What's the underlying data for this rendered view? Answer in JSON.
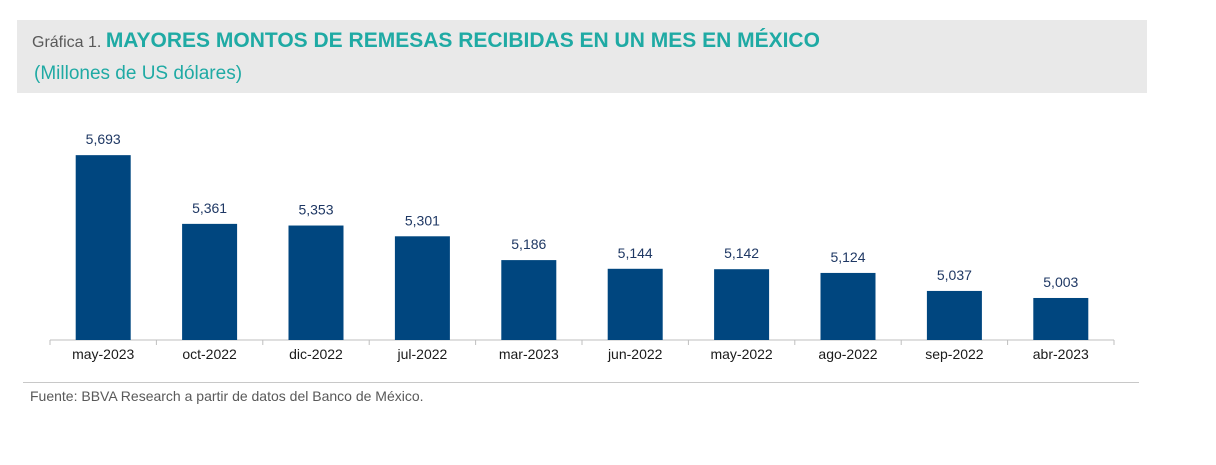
{
  "header": {
    "prefix": "Gráfica 1.",
    "title": "MAYORES MONTOS DE REMESAS RECIBIDAS EN UN MES EN MÉXICO",
    "subtitle": "(Millones de US dólares)"
  },
  "footer": {
    "source": "Fuente: BBVA Research a partir de datos del Banco de México."
  },
  "colors": {
    "bar": "#00467f",
    "title": "#1faaa4",
    "label": "#1f3864",
    "axis": "#bfbfbf",
    "header_bg": "#e9e9e9"
  },
  "chart_data": {
    "type": "bar",
    "categories": [
      "may-2023",
      "oct-2022",
      "dic-2022",
      "jul-2022",
      "mar-2023",
      "jun-2022",
      "may-2022",
      "ago-2022",
      "sep-2022",
      "abr-2023"
    ],
    "values": [
      5693,
      5361,
      5353,
      5301,
      5186,
      5144,
      5142,
      5124,
      5037,
      5003
    ],
    "value_labels": [
      "5,693",
      "5,361",
      "5,353",
      "5,301",
      "5,186",
      "5,144",
      "5,142",
      "5,124",
      "5,037",
      "5,003"
    ],
    "title": "MAYORES MONTOS DE REMESAS RECIBIDAS EN UN MES EN MÉXICO",
    "ylabel": "",
    "xlabel": "",
    "ylim": [
      4800,
      5800
    ],
    "grid": false,
    "legend": "none"
  }
}
